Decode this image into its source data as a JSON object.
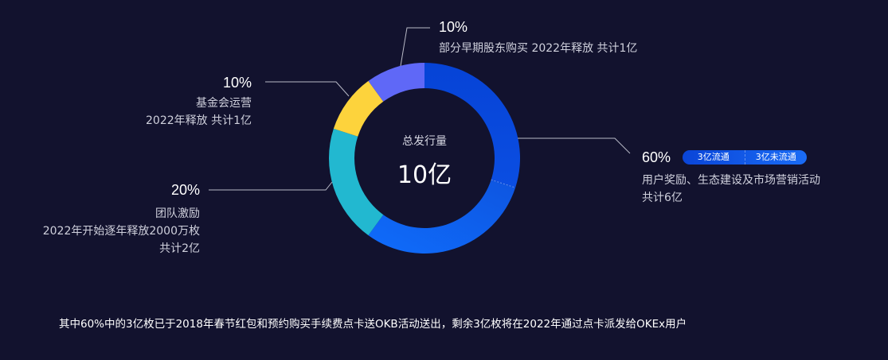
{
  "chart_data": {
    "type": "pie",
    "subtype": "donut",
    "title": "总发行量",
    "center_value": "10亿",
    "total": 10,
    "unit": "亿",
    "slices": [
      {
        "name": "用户奖励、生态建设及市场营销活动",
        "percent": 60,
        "value": 6,
        "color": "#0a45d8",
        "sub_slices": [
          {
            "name": "3亿流通",
            "value": 3
          },
          {
            "name": "3亿未流通",
            "value": 3
          }
        ]
      },
      {
        "name": "团队激励",
        "percent": 20,
        "value": 2,
        "color": "#22b8d0"
      },
      {
        "name": "基金会运营",
        "percent": 10,
        "value": 1,
        "color": "#fdd33c"
      },
      {
        "name": "部分早期股东购买",
        "percent": 10,
        "value": 1,
        "color": "#5f68f7"
      }
    ]
  },
  "center": {
    "label": "总发行量",
    "value": "10亿"
  },
  "labels": {
    "shareholders": {
      "pct": "10%",
      "desc": "部分早期股东购买 2022年释放 共计1亿"
    },
    "foundation": {
      "pct": "10%",
      "line1": "基金会运营",
      "line2": "2022年释放 共计1亿"
    },
    "team": {
      "pct": "20%",
      "line1": "团队激励",
      "line2": "2022年开始逐年释放2000万枚",
      "line3": "共计2亿"
    },
    "users": {
      "pct": "60%",
      "line1": "用户奖励、生态建设及市场营销活动",
      "line2": "共计6亿",
      "badge_left": "3亿流通",
      "badge_right": "3亿未流通"
    }
  },
  "footnote": "其中60%中的3亿枚已于2018年春节红包和预约购买手续费点卡送OKB活动送出，剩余3亿枚将在2022年通过点卡派发给OKEx用户"
}
